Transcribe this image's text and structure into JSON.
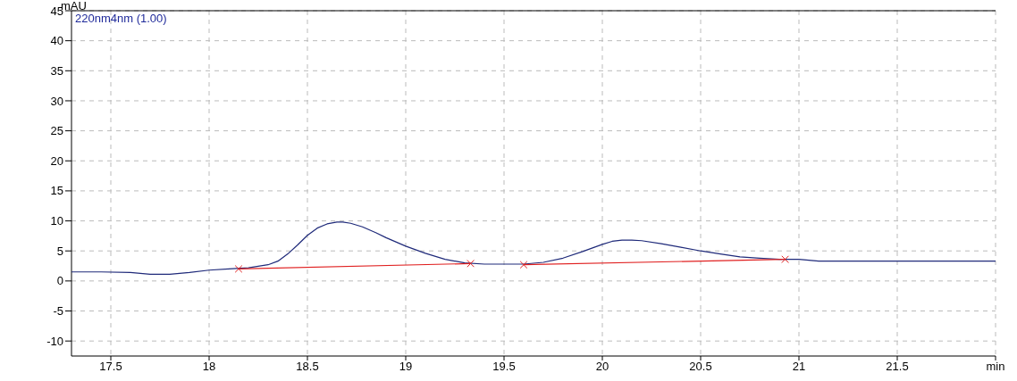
{
  "chart_data": {
    "type": "line",
    "title": "220nm4nm (1.00)",
    "ylabel": "mAU",
    "xlim": [
      17.3,
      22.0
    ],
    "xticks": [
      17.5,
      18.0,
      18.5,
      19.0,
      19.5,
      20.0,
      20.5,
      21.0,
      21.5,
      {
        "value": 22.0,
        "label": "min"
      }
    ],
    "ylim": [
      -12.5,
      45
    ],
    "yticks": [
      -10,
      -5,
      0,
      5,
      10,
      15,
      20,
      25,
      30,
      35,
      40,
      45
    ],
    "grid": true,
    "line_style": "solid",
    "series": [
      {
        "color": "#1f2a7a",
        "x": [
          17.3,
          17.45,
          17.6,
          17.7,
          17.8,
          17.9,
          18.0,
          18.1,
          18.2,
          18.3,
          18.35,
          18.4,
          18.45,
          18.5,
          18.55,
          18.6,
          18.65,
          18.68,
          18.72,
          18.78,
          18.85,
          18.9,
          19.0,
          19.1,
          19.2,
          19.3,
          19.4,
          19.5,
          19.6,
          19.7,
          19.8,
          19.9,
          20.0,
          20.05,
          20.1,
          20.15,
          20.2,
          20.3,
          20.4,
          20.5,
          20.6,
          20.7,
          20.8,
          20.9,
          21.0,
          21.1,
          21.5,
          22.0
        ],
        "values": [
          1.5,
          1.5,
          1.4,
          1.1,
          1.1,
          1.4,
          1.8,
          2.0,
          2.2,
          2.7,
          3.3,
          4.5,
          6.0,
          7.6,
          8.8,
          9.5,
          9.8,
          9.8,
          9.6,
          9.0,
          8.0,
          7.2,
          5.8,
          4.6,
          3.6,
          3.0,
          2.8,
          2.8,
          2.8,
          3.1,
          3.8,
          4.9,
          6.1,
          6.6,
          6.8,
          6.8,
          6.7,
          6.2,
          5.6,
          5.0,
          4.5,
          4.0,
          3.8,
          3.6,
          3.6,
          3.3,
          3.3,
          3.3
        ]
      },
      {
        "color": "#e02020",
        "marker": "cross",
        "x": [
          18.15,
          19.33
        ],
        "values": [
          2.0,
          2.9
        ]
      },
      {
        "color": "#e02020",
        "marker": "cross",
        "x": [
          19.6,
          20.93
        ],
        "values": [
          2.7,
          3.6
        ]
      }
    ]
  }
}
